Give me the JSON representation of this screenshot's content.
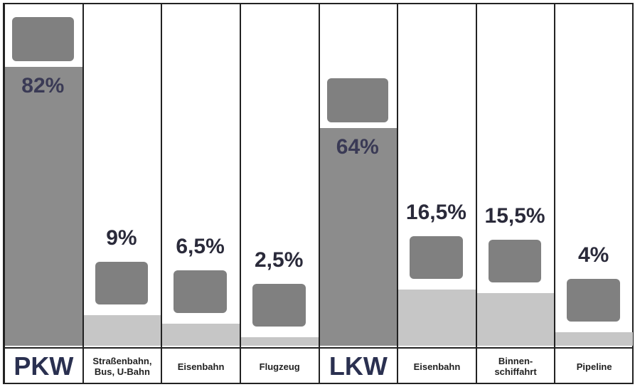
{
  "chart_data": {
    "type": "bar",
    "categories": [
      "PKW",
      "Straßenbahn,\nBus, U-Bahn",
      "Eisenbahn",
      "Flugzeug",
      "LKW",
      "Eisenbahn",
      "Binnen-\nschiffahrt",
      "Pipeline"
    ],
    "values": [
      82,
      9,
      6.5,
      2.5,
      64,
      16.5,
      15.5,
      4
    ],
    "value_labels": [
      "82%",
      "9%",
      "6,5%",
      "2,5%",
      "64%",
      "16,5%",
      "15,5%",
      "4%"
    ],
    "colors": [
      "#8c8c8c",
      "#c6c6c6",
      "#c6c6c6",
      "#c6c6c6",
      "#8c8c8c",
      "#c6c6c6",
      "#c6c6c6",
      "#c6c6c6"
    ],
    "ylim": [
      0,
      100
    ]
  }
}
